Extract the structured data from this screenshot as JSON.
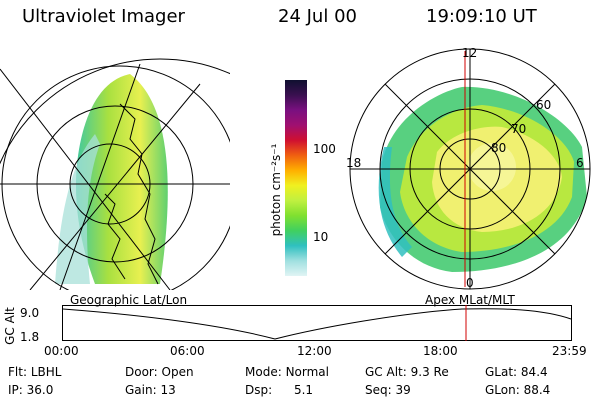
{
  "header": {
    "instrument": "Ultraviolet Imager",
    "date": "24 Jul 00",
    "time": "19:09:10 UT"
  },
  "colorbar": {
    "label": "photon cm⁻²s⁻¹",
    "ticks": [
      "100",
      "10"
    ],
    "colors": [
      "#101030",
      "#3a1050",
      "#7a1080",
      "#a01070",
      "#d01030",
      "#f06010",
      "#ffb000",
      "#f0f020",
      "#c0f040",
      "#80e030",
      "#40d060",
      "#30c0c0",
      "#a0e0e0",
      "#e0f4f4"
    ]
  },
  "left_map": {
    "label": "Geographic Lat/Lon"
  },
  "right_map": {
    "label": "Apex MLat/MLT",
    "mlt_labels": {
      "top": "12",
      "left": "18",
      "right": "6",
      "bottom": "0"
    },
    "lat_labels": [
      "80",
      "70",
      "60"
    ]
  },
  "altitude_plot": {
    "axis_label": "GC Alt",
    "y_ticks": [
      "9.0",
      "1.8"
    ],
    "x_ticks": [
      "00:00",
      "06:00",
      "12:00",
      "18:00",
      "23:59"
    ],
    "marker_color": "#d00000",
    "marker_time": "19:09"
  },
  "footer": {
    "row1": [
      {
        "label": "Flt:",
        "value": "LBHL"
      },
      {
        "label": "Door:",
        "value": "Open"
      },
      {
        "label": "Mode:",
        "value": "Normal"
      },
      {
        "label": "GC Alt:",
        "value": "9.3 Re"
      },
      {
        "label": "GLat:",
        "value": "84.4"
      }
    ],
    "row2": [
      {
        "label": "IP:",
        "value": "36.0"
      },
      {
        "label": "Gain:",
        "value": "13"
      },
      {
        "label": "Dsp:",
        "value": "5.1"
      },
      {
        "label": "Seq:",
        "value": "39"
      },
      {
        "label": "GLon:",
        "value": "88.4"
      }
    ]
  }
}
